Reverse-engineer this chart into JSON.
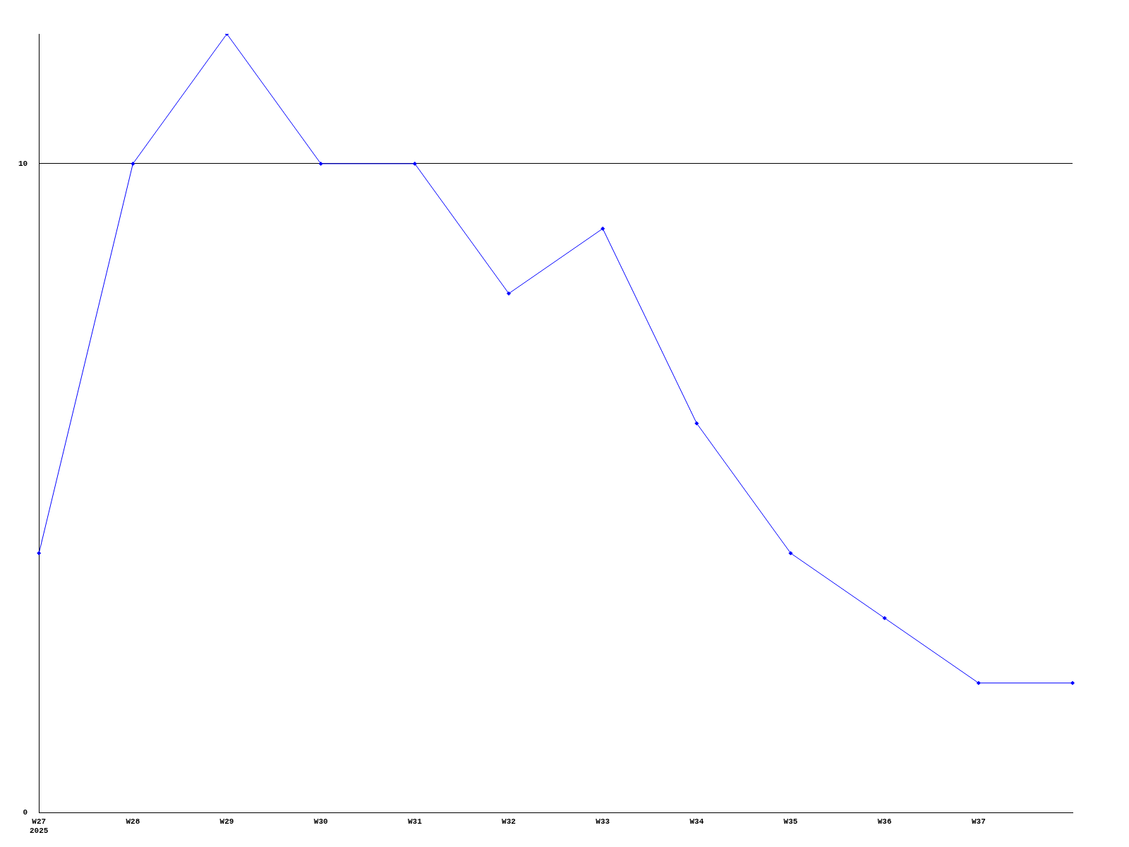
{
  "chart_data": {
    "type": "line",
    "categories": [
      "W27\n2025",
      "W28",
      "W29",
      "W30",
      "W31",
      "W32",
      "W33",
      "W34",
      "W35",
      "W36",
      "W37",
      null
    ],
    "series": [
      {
        "color": "#0000ff",
        "values": [
          4,
          10,
          12,
          10,
          10,
          8,
          9,
          6,
          4,
          3,
          2,
          2
        ]
      }
    ],
    "ylim": [
      0,
      12
    ],
    "yticks": [
      0,
      10
    ],
    "grid": "y",
    "marker": "diamond",
    "line_style": "solid",
    "legend": false
  }
}
